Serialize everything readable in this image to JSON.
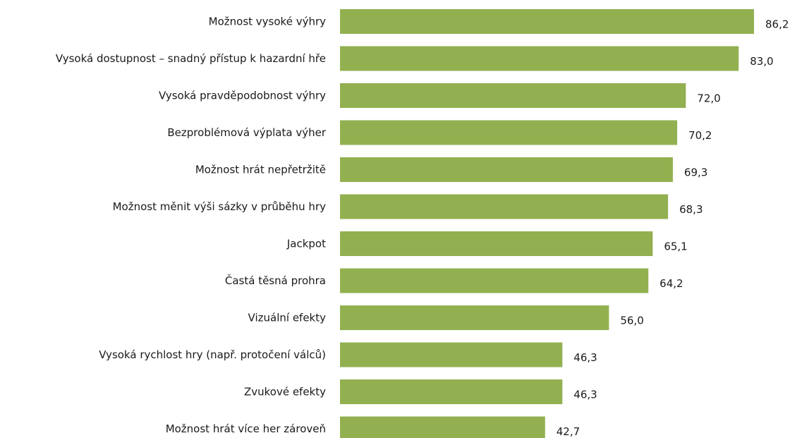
{
  "colors": {
    "bar": "#92b050",
    "text": "#1a1a1a",
    "background": "#ffffff"
  },
  "chart_data": {
    "type": "bar",
    "orientation": "horizontal",
    "title": "",
    "xlabel": "",
    "ylabel": "",
    "xlim": [
      0,
      86.2
    ],
    "grid": false,
    "legend": "none",
    "categories": [
      "Možnost vysoké výhry",
      "Vysoká dostupnost – snadný přístup k hazardní hře",
      "Vysoká pravděpodobnost výhry",
      "Bezproblémová výplata výher",
      "Možnost hrát nepřetržitě",
      "Možnost měnit výši sázky v průběhu hry",
      "Jackpot",
      "Častá těsná prohra",
      "Vizuální efekty",
      "Vysoká rychlost hry (např. protočení válců)",
      "Zvukové efekty",
      "Možnost hrát více her zároveň"
    ],
    "values": [
      86.2,
      83.0,
      72.0,
      70.2,
      69.3,
      68.3,
      65.1,
      64.2,
      56.0,
      46.3,
      46.3,
      42.7
    ],
    "value_labels": [
      "86,2",
      "83,0",
      "72,0",
      "70,2",
      "69,3",
      "68,3",
      "65,1",
      "64,2",
      "56,0",
      "46,3",
      "46,3",
      "42,7"
    ]
  }
}
